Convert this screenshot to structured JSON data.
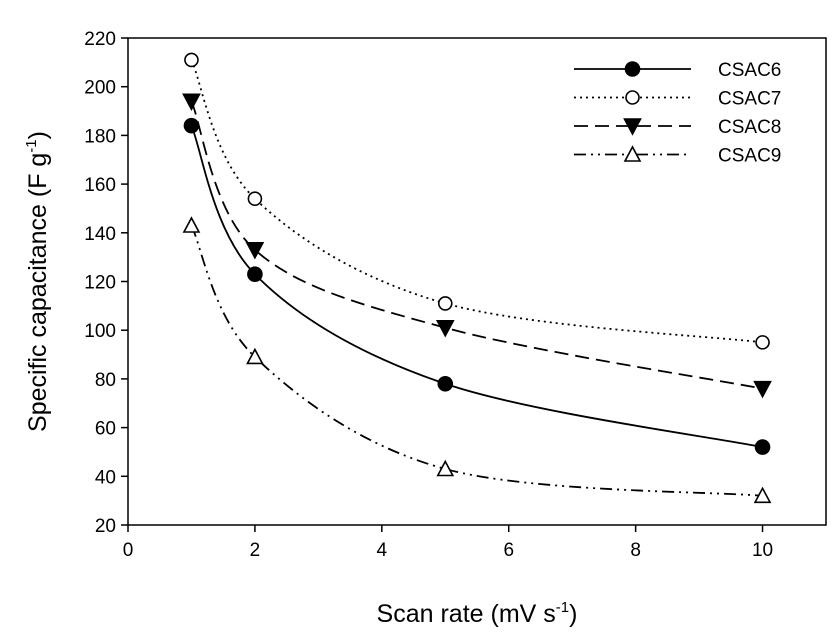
{
  "chart_data": {
    "type": "line",
    "title": "",
    "xlabel": "Scan rate (mV s",
    "xlabel_sup": "-1",
    "xlabel_close": ")",
    "ylabel": "Specific capacitance (F g",
    "ylabel_sup": "-1",
    "ylabel_close": ")",
    "xlim": [
      0,
      11
    ],
    "ylim": [
      20,
      220
    ],
    "xticks": [
      0,
      2,
      4,
      6,
      8,
      10
    ],
    "yticks": [
      20,
      40,
      60,
      80,
      100,
      120,
      140,
      160,
      180,
      200,
      220
    ],
    "grid": false,
    "legend_position": "top-right",
    "x": [
      1,
      2,
      5,
      10
    ],
    "series": [
      {
        "name": "CSAC6",
        "values": [
          184,
          123,
          78,
          52
        ],
        "marker": "filled-circle",
        "line": "solid"
      },
      {
        "name": "CSAC7",
        "values": [
          211,
          154,
          111,
          95
        ],
        "marker": "open-circle",
        "line": "dotted"
      },
      {
        "name": "CSAC8",
        "values": [
          194,
          133,
          101,
          76
        ],
        "marker": "filled-triangle-down",
        "line": "dashed"
      },
      {
        "name": "CSAC9",
        "values": [
          143,
          89,
          43,
          32
        ],
        "marker": "open-triangle-up",
        "line": "dash-dot-dot"
      }
    ]
  }
}
